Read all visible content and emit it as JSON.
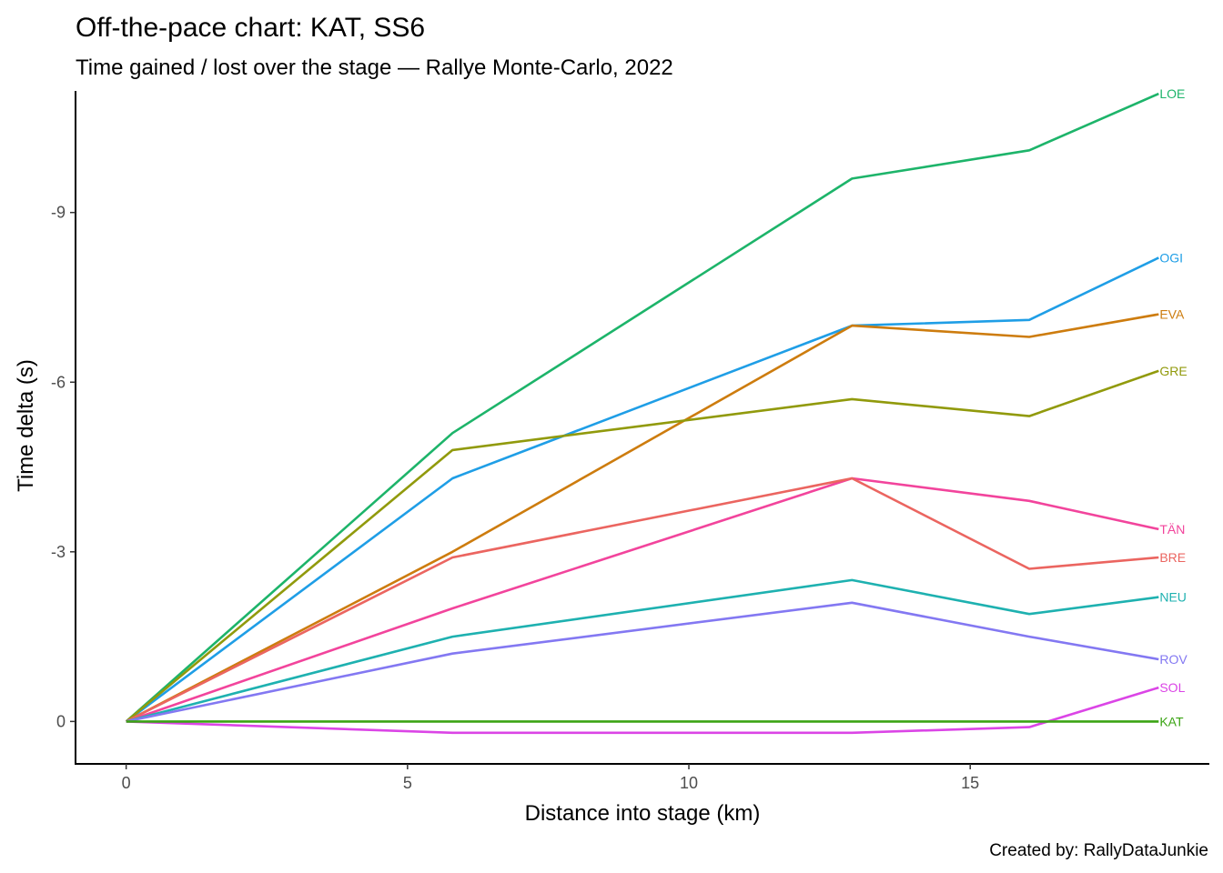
{
  "chart_data": {
    "type": "line",
    "title": "Off-the-pace chart: KAT, SS6",
    "subtitle": "Time gained / lost over the stage — Rallye Monte-Carlo, 2022",
    "xlabel": "Distance into stage (km)",
    "ylabel": "Time delta (s)",
    "caption": "Created by: RallyDataJunkie",
    "xlim": [
      -0.9,
      19.25
    ],
    "ylim": [
      0.75,
      -11.15
    ],
    "y_reversed": true,
    "x_ticks": [
      0,
      5,
      10,
      15
    ],
    "x_tick_labels": [
      "0",
      "5",
      "10",
      "15"
    ],
    "y_ticks": [
      0,
      -3,
      -6,
      -9
    ],
    "y_tick_labels": [
      "0",
      "-3",
      "-6",
      "-9"
    ],
    "grid": false,
    "legend": "none (labels at line ends)",
    "x": [
      0,
      5.8,
      12.9,
      16.05,
      18.35
    ],
    "series": [
      {
        "name": "LOE",
        "color": "#1db46a",
        "values": [
          0,
          -5.1,
          -9.6,
          -10.1,
          -11.1
        ]
      },
      {
        "name": "OGI",
        "color": "#1f9ee6",
        "values": [
          0,
          -4.3,
          -7.0,
          -7.1,
          -8.2
        ]
      },
      {
        "name": "EVA",
        "color": "#cd7c0e",
        "values": [
          0,
          -3.0,
          -7.0,
          -6.8,
          -7.2
        ]
      },
      {
        "name": "GRE",
        "color": "#919a0c",
        "values": [
          0,
          -4.8,
          -5.7,
          -5.4,
          -6.2
        ]
      },
      {
        "name": "TÄN",
        "color": "#f2449c",
        "values": [
          0,
          -2.0,
          -4.3,
          -3.9,
          -3.4
        ]
      },
      {
        "name": "BRE",
        "color": "#eb6560",
        "values": [
          0,
          -2.9,
          -4.3,
          -2.7,
          -2.9
        ]
      },
      {
        "name": "NEU",
        "color": "#1eb1b0",
        "values": [
          0,
          -1.5,
          -2.5,
          -1.9,
          -2.2
        ]
      },
      {
        "name": "ROV",
        "color": "#8378f2",
        "values": [
          0,
          -1.2,
          -2.1,
          -1.5,
          -1.1
        ]
      },
      {
        "name": "SOL",
        "color": "#db45e6",
        "values": [
          0,
          0.2,
          0.2,
          0.1,
          -0.6
        ]
      },
      {
        "name": "KAT",
        "color": "#3ba414",
        "values": [
          0,
          0,
          0,
          0,
          0
        ]
      }
    ]
  }
}
